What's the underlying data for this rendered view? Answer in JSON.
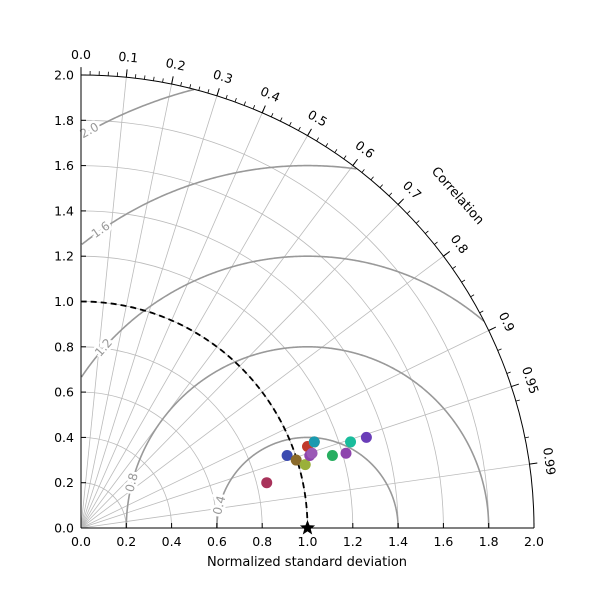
{
  "chart_data": {
    "type": "scatter",
    "subtype": "taylor-diagram",
    "title": "",
    "xlabel": "Normalized standard deviation",
    "ylabel": "",
    "angle_label": "Correlation",
    "xlim": [
      0,
      2.0
    ],
    "ylim": [
      0,
      2.0
    ],
    "std_ticks": [
      "0.0",
      "0.2",
      "0.4",
      "0.6",
      "0.8",
      "1.0",
      "1.2",
      "1.4",
      "1.6",
      "1.8",
      "2.0"
    ],
    "correlation_ticks": [
      "0.0",
      "0.1",
      "0.2",
      "0.3",
      "0.4",
      "0.5",
      "0.6",
      "0.7",
      "0.8",
      "0.9",
      "0.95",
      "0.99"
    ],
    "reference": {
      "std": 1.0,
      "correlation": 1.0
    },
    "rms_contours": [
      {
        "value": 0.4,
        "label": "0.4"
      },
      {
        "value": 0.8,
        "label": "0.8"
      },
      {
        "value": 1.2,
        "label": "1.2"
      },
      {
        "value": 1.6,
        "label": "1.6"
      },
      {
        "value": 2.0,
        "label": "2.0"
      }
    ],
    "grid": true,
    "points": [
      {
        "x": 0.82,
        "y": 0.2,
        "color": "#a8325a"
      },
      {
        "x": 0.91,
        "y": 0.32,
        "color": "#3b4bb0"
      },
      {
        "x": 0.95,
        "y": 0.3,
        "color": "#8a6a2a"
      },
      {
        "x": 0.99,
        "y": 0.28,
        "color": "#9ab03a"
      },
      {
        "x": 1.0,
        "y": 0.36,
        "color": "#c0392b"
      },
      {
        "x": 1.01,
        "y": 0.32,
        "color": "#8e44ad"
      },
      {
        "x": 1.02,
        "y": 0.33,
        "color": "#9b59b6"
      },
      {
        "x": 1.03,
        "y": 0.38,
        "color": "#e67e22"
      },
      {
        "x": 1.03,
        "y": 0.38,
        "color": "#1a9ab0"
      },
      {
        "x": 1.11,
        "y": 0.32,
        "color": "#27ae60"
      },
      {
        "x": 1.17,
        "y": 0.33,
        "color": "#8e44ad"
      },
      {
        "x": 1.19,
        "y": 0.38,
        "color": "#1abc9c"
      },
      {
        "x": 1.26,
        "y": 0.4,
        "color": "#6a3db8"
      }
    ]
  }
}
